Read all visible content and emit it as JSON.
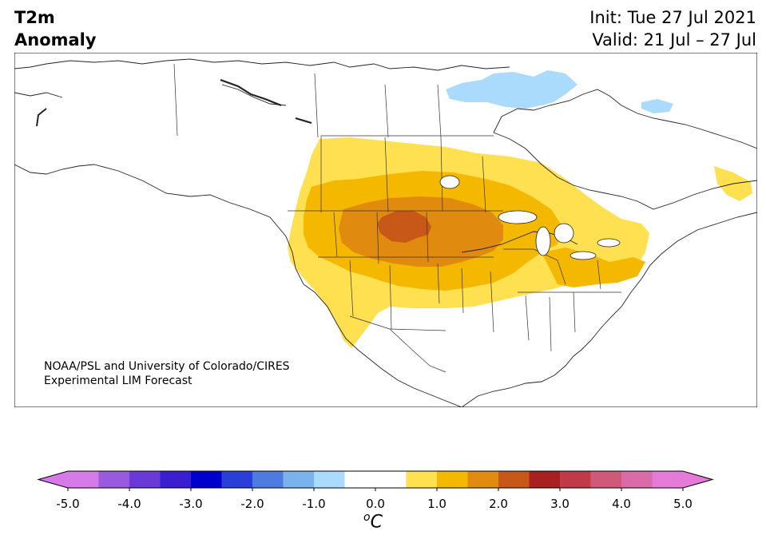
{
  "title": {
    "left_line1": "T2m",
    "left_line2": "Anomaly",
    "init": "Init: Tue 27 Jul 2021",
    "valid": "Valid: 21 Jul – 27 Jul"
  },
  "credit": {
    "line1": "NOAA/PSL and University of Colorado/CIRES",
    "line2": "Experimental LIM Forecast"
  },
  "colorbar": {
    "unit_super": "o",
    "unit_main": "C",
    "ticks": [
      "-5.0",
      "-4.0",
      "-3.0",
      "-2.0",
      "-1.0",
      "0.0",
      "1.0",
      "2.0",
      "3.0",
      "4.0",
      "5.0"
    ],
    "tick_values": [
      -5,
      -4,
      -3,
      -2,
      -1,
      0,
      1,
      2,
      3,
      4,
      5
    ],
    "extend": "both",
    "levels": [
      -5,
      -4.5,
      -4,
      -3.5,
      -3,
      -2.5,
      -2,
      -1.5,
      -1,
      -0.5,
      0.5,
      1,
      1.5,
      2,
      2.5,
      3,
      3.5,
      4,
      4.5,
      5
    ],
    "colors": [
      "#d57ae8",
      "#9a5ae0",
      "#6a3ad8",
      "#3a1ed0",
      "#0000cc",
      "#2a3ed8",
      "#4f7ae0",
      "#7ab2ee",
      "#aadafc",
      "#ffffff",
      "#ffe050",
      "#f5b800",
      "#e08a10",
      "#c85818",
      "#a82020",
      "#c03a4a",
      "#d05878",
      "#da6aa8",
      "#e67ad8"
    ],
    "under_color": "#d57ae8",
    "over_color": "#e67ad8"
  },
  "map": {
    "region": "North America",
    "anomaly_colors": {
      "cool_1": "#aadafc",
      "warm_1": "#ffe050",
      "warm_2": "#f5b800",
      "warm_3": "#e08a10",
      "warm_4": "#c85818"
    }
  }
}
